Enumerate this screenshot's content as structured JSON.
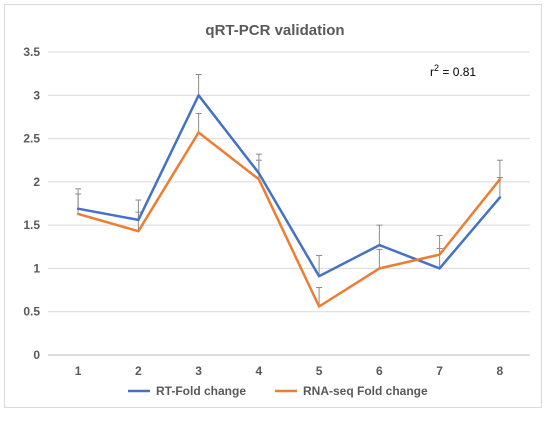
{
  "chart_data": {
    "type": "line",
    "title": "qRT-PCR validation",
    "xlabel": "",
    "ylabel": "",
    "categories": [
      "1",
      "2",
      "3",
      "4",
      "5",
      "6",
      "7",
      "8"
    ],
    "ylim": [
      0,
      3.5
    ],
    "yticks": [
      "0",
      "0.5",
      "1",
      "1.5",
      "2",
      "2.5",
      "3",
      "3.5"
    ],
    "grid": true,
    "legend_position": "bottom",
    "annotation": {
      "base": "r",
      "sup": "2",
      "rest": " = 0.81"
    },
    "series": [
      {
        "name": "RT-Fold change",
        "color": "#4472c4",
        "values": [
          1.69,
          1.56,
          3.0,
          2.1,
          0.91,
          1.27,
          1.0,
          1.82
        ],
        "error_upper": [
          0.23,
          0.23,
          0.24,
          0.22,
          0.24,
          0.23,
          0.23,
          0.23
        ]
      },
      {
        "name": "RNA-seq Fold change",
        "color": "#ed7d31",
        "values": [
          1.63,
          1.43,
          2.57,
          2.03,
          0.56,
          1.0,
          1.16,
          2.03
        ],
        "error_upper": [
          0.23,
          0.22,
          0.22,
          0.22,
          0.22,
          0.22,
          0.22,
          0.22
        ]
      }
    ]
  }
}
